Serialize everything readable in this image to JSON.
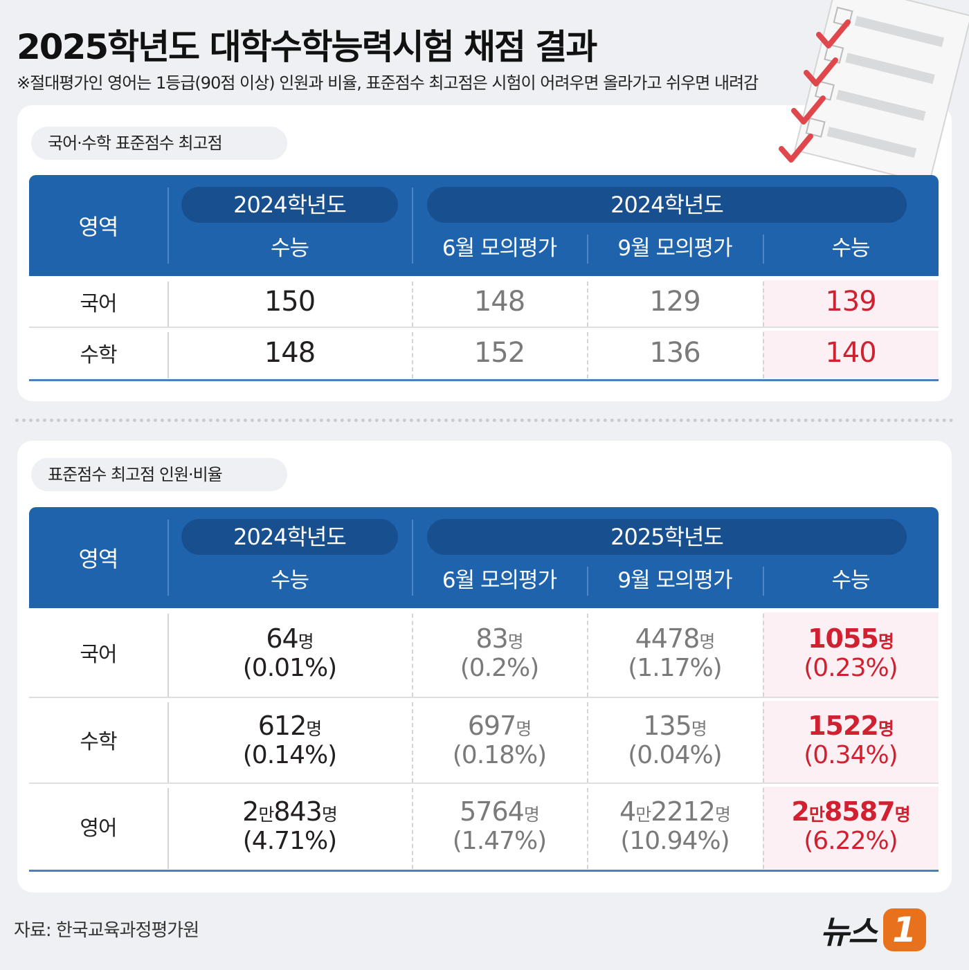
{
  "header": {
    "title": "2025학년도 대학수학능력시험 채점 결과",
    "note": "※절대평가인 영어는 1등급(90점 이상) 인원과 비율, 표준점수 최고점은 시험이 어려우면 올라가고 쉬우면 내려감"
  },
  "table1": {
    "label": "국어·수학 표준점수 최고점",
    "corner": "영역",
    "groups": [
      "2024학년도",
      "2024학년도"
    ],
    "columns": [
      "수능",
      "6월 모의평가",
      "9월 모의평가",
      "수능"
    ],
    "rows": [
      [
        "국어",
        150,
        148,
        129,
        139
      ],
      [
        "수학",
        148,
        152,
        136,
        140
      ]
    ]
  },
  "table2": {
    "label": "표준점수 최고점 인원·비율",
    "corner": "영역",
    "groups": [
      "2024학년도",
      "2025학년도"
    ],
    "columns": [
      "수능",
      "6월 모의평가",
      "9월 모의평가",
      "수능"
    ],
    "rows": [
      [
        "국어",
        {
          "count": "64명",
          "ratio": "(0.01%)"
        },
        {
          "count": "83명",
          "ratio": "(0.2%)"
        },
        {
          "count": "4478명",
          "ratio": "(1.17%)"
        },
        {
          "count": "1055명",
          "ratio": "(0.23%)"
        }
      ],
      [
        "수학",
        {
          "count": "612명",
          "ratio": "(0.14%)"
        },
        {
          "count": "697명",
          "ratio": "(0.18%)"
        },
        {
          "count": "135명",
          "ratio": "(0.04%)"
        },
        {
          "count": "1522명",
          "ratio": "(0.34%)"
        }
      ],
      [
        "영어",
        {
          "count": "2만843명",
          "ratio": "(4.71%)"
        },
        {
          "count": "5764명",
          "ratio": "(1.47%)"
        },
        {
          "count": "4만2212명",
          "ratio": "(10.94%)"
        },
        {
          "count": "2만8587명",
          "ratio": "(6.22%)"
        }
      ]
    ]
  },
  "footer": {
    "source": "자료: 한국교육과정평가원",
    "logo": "뉴스",
    "logo_mark": "1"
  }
}
